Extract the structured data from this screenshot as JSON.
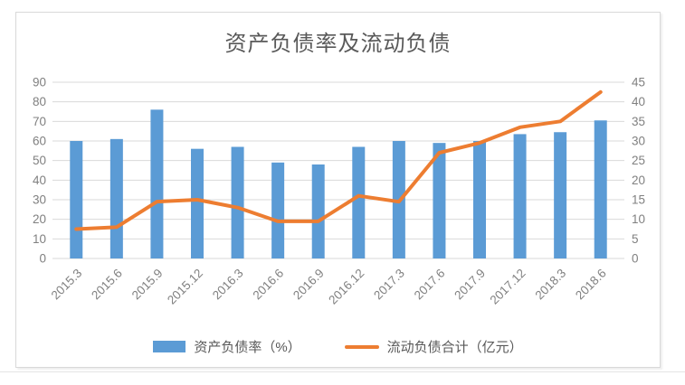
{
  "page": {
    "background": "#ffffff"
  },
  "chart": {
    "title": "资产负债率及流动负债",
    "colors": {
      "bar": "#5B9BD5",
      "line": "#ED7D31",
      "grid": "#d9d9d9",
      "axis_text": "#808080",
      "title_text": "#595959",
      "card_border": "#d9d9d9"
    },
    "legend": [
      {
        "type": "bar",
        "label": "资产负债率（%）"
      },
      {
        "type": "line",
        "label": "流动负债合计（亿元）"
      }
    ]
  },
  "chart_data": {
    "type": "bar+line combo",
    "title": "资产负债率及流动负债",
    "categories": [
      "2015.3",
      "2015.6",
      "2015.9",
      "2015.12",
      "2016.3",
      "2016.6",
      "2016.9",
      "2016.12",
      "2017.3",
      "2017.6",
      "2017.9",
      "2017.12",
      "2018.3",
      "2018.6"
    ],
    "series": [
      {
        "name": "资产负债率（%）",
        "type": "bar",
        "axis": "left",
        "values": [
          60,
          61,
          76,
          56,
          57,
          49,
          48,
          57,
          60,
          59,
          60,
          63.5,
          64.5,
          70.5
        ]
      },
      {
        "name": "流动负债合计（亿元）",
        "type": "line",
        "axis": "right",
        "values": [
          7.5,
          8,
          14.5,
          15,
          13,
          9.5,
          9.5,
          16,
          14.5,
          27,
          29.5,
          33.5,
          35,
          42.5
        ]
      }
    ],
    "left_axis": {
      "min": 0,
      "max": 90,
      "step": 10
    },
    "right_axis": {
      "min": 0,
      "max": 45,
      "step": 5
    },
    "grid": true,
    "legend_position": "bottom",
    "x_label_rotation": -45
  }
}
